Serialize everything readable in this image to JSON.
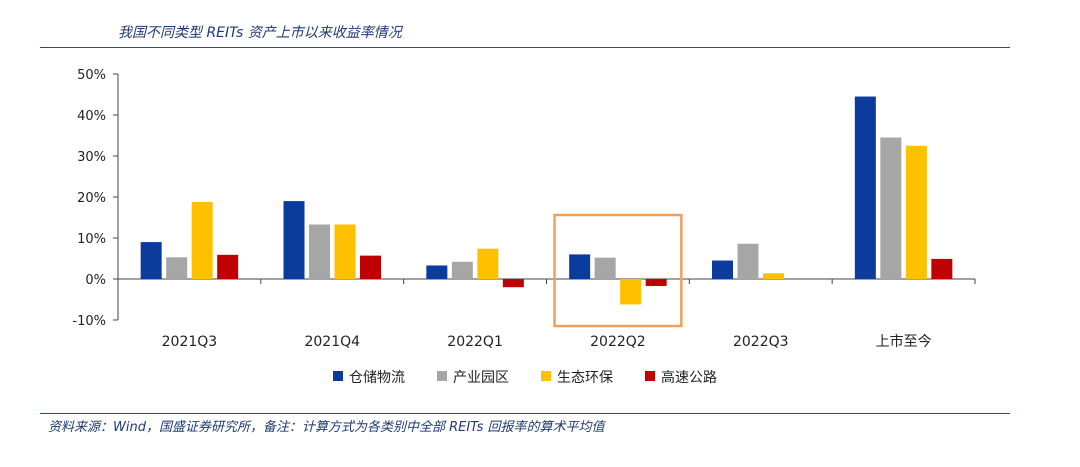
{
  "title": "我国不同类型 REITs 资产上市以来收益率情况",
  "source": "资料来源：Wind，国盛证券研究所，备注：计算方式为各类别中全部 REITs 回报率的算术平均值",
  "chart_data": {
    "type": "bar",
    "categories": [
      "2021Q3",
      "2021Q4",
      "2022Q1",
      "2022Q2",
      "2022Q3",
      "上市至今"
    ],
    "series": [
      {
        "name": "仓储物流",
        "color": "#0b3b9c",
        "values": [
          9.0,
          19.0,
          3.3,
          6.0,
          4.5,
          44.5
        ]
      },
      {
        "name": "产业园区",
        "color": "#a6a6a6",
        "values": [
          5.3,
          13.3,
          4.2,
          5.2,
          8.6,
          34.5
        ]
      },
      {
        "name": "生态环保",
        "color": "#ffc000",
        "values": [
          18.8,
          13.3,
          7.4,
          -6.2,
          1.4,
          32.5
        ]
      },
      {
        "name": "高速公路",
        "color": "#c00000",
        "values": [
          5.9,
          5.7,
          -2.0,
          -1.7,
          null,
          4.9
        ]
      }
    ],
    "yticks": [
      "-10%",
      "0%",
      "10%",
      "20%",
      "30%",
      "40%",
      "50%"
    ],
    "ylim": [
      -10,
      50
    ],
    "legend": "bottom",
    "highlight": {
      "category": "2022Q2",
      "color": "#f0a05a"
    }
  }
}
